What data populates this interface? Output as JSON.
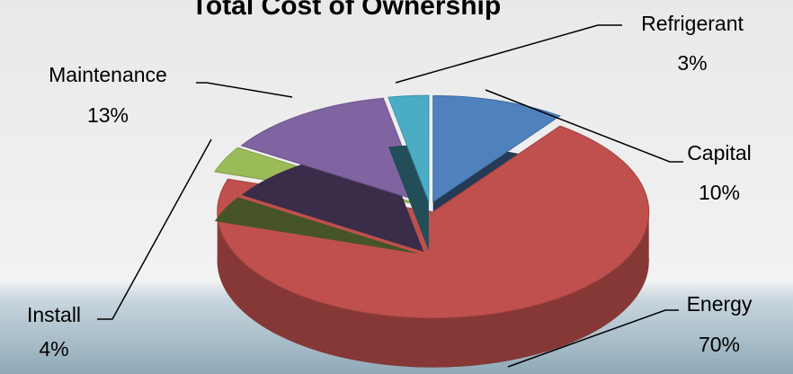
{
  "chart_data": {
    "type": "pie",
    "title": "Total Cost of Ownership",
    "categories": [
      "Capital",
      "Energy",
      "Install",
      "Maintenance",
      "Refrigerant"
    ],
    "values": [
      10,
      70,
      4,
      13,
      3
    ],
    "value_labels": [
      "10%",
      "70%",
      "4%",
      "13%",
      "3%"
    ],
    "colors": [
      "#4f81bd",
      "#c0504d",
      "#9bbb59",
      "#8064a2",
      "#4bacc6"
    ]
  }
}
